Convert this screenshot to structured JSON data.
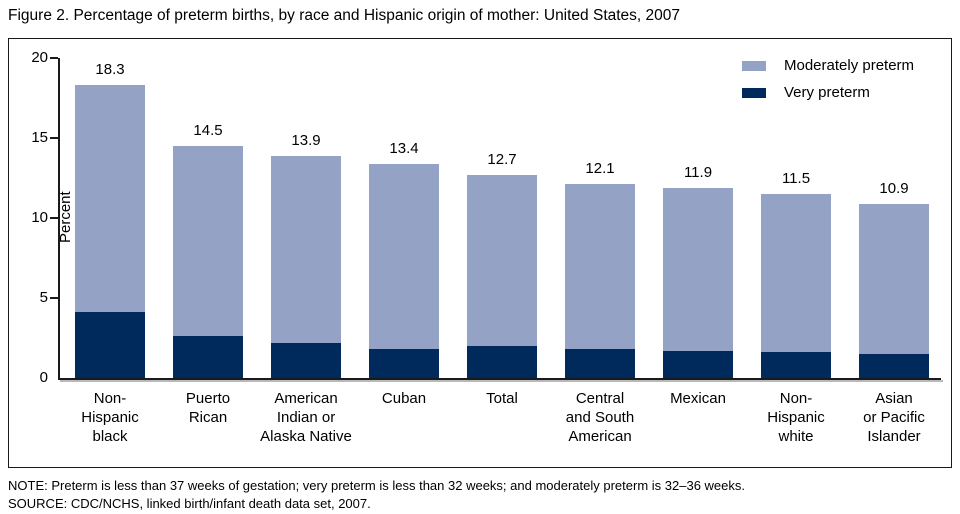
{
  "title": "Figure 2. Percentage of preterm births, by race and Hispanic origin of mother: United States, 2007",
  "legend": [
    {
      "label": "Moderately preterm",
      "color": "#93a2c5"
    },
    {
      "label": "Very preterm",
      "color": "#002a5c"
    }
  ],
  "colors": {
    "moderately_preterm": "#93a2c5",
    "very_preterm": "#002a5c",
    "axis": "#1a1a1a"
  },
  "chart_data": {
    "type": "bar",
    "stacked": true,
    "title": "Figure 2. Percentage of preterm births, by race and Hispanic origin of mother: United States, 2007",
    "xlabel": "",
    "ylabel": "Percent",
    "ylim": [
      0,
      20
    ],
    "yticks": [
      0,
      5,
      10,
      15,
      20
    ],
    "grid": false,
    "legend_position": "top-right",
    "categories": [
      "Non-\nHispanic\nblack",
      "Puerto\nRican",
      "American\nIndian or\nAlaska Native",
      "Cuban",
      "Total",
      "Central\nand South\nAmerican",
      "Mexican",
      "Non-\nHispanic\nwhite",
      "Asian\nor Pacific\nIslander"
    ],
    "series": [
      {
        "name": "Very preterm",
        "color": "#002a5c",
        "values": [
          4.1,
          2.6,
          2.2,
          1.8,
          2.0,
          1.8,
          1.7,
          1.6,
          1.5
        ]
      },
      {
        "name": "Moderately preterm",
        "color": "#93a2c5",
        "values": [
          14.2,
          11.9,
          11.7,
          11.6,
          10.7,
          10.3,
          10.2,
          9.9,
          9.4
        ]
      }
    ],
    "totals": [
      18.3,
      14.5,
      13.9,
      13.4,
      12.7,
      12.1,
      11.9,
      11.5,
      10.9
    ],
    "bar_labels": [
      "18.3",
      "14.5",
      "13.9",
      "13.4",
      "12.7",
      "12.1",
      "11.9",
      "11.5",
      "10.9"
    ]
  },
  "notes": {
    "note": "NOTE: Preterm is less than 37 weeks of gestation; very preterm is less than 32 weeks; and moderately preterm is 32–36 weeks.",
    "source": "SOURCE: CDC/NCHS, linked birth/infant death data set, 2007."
  }
}
